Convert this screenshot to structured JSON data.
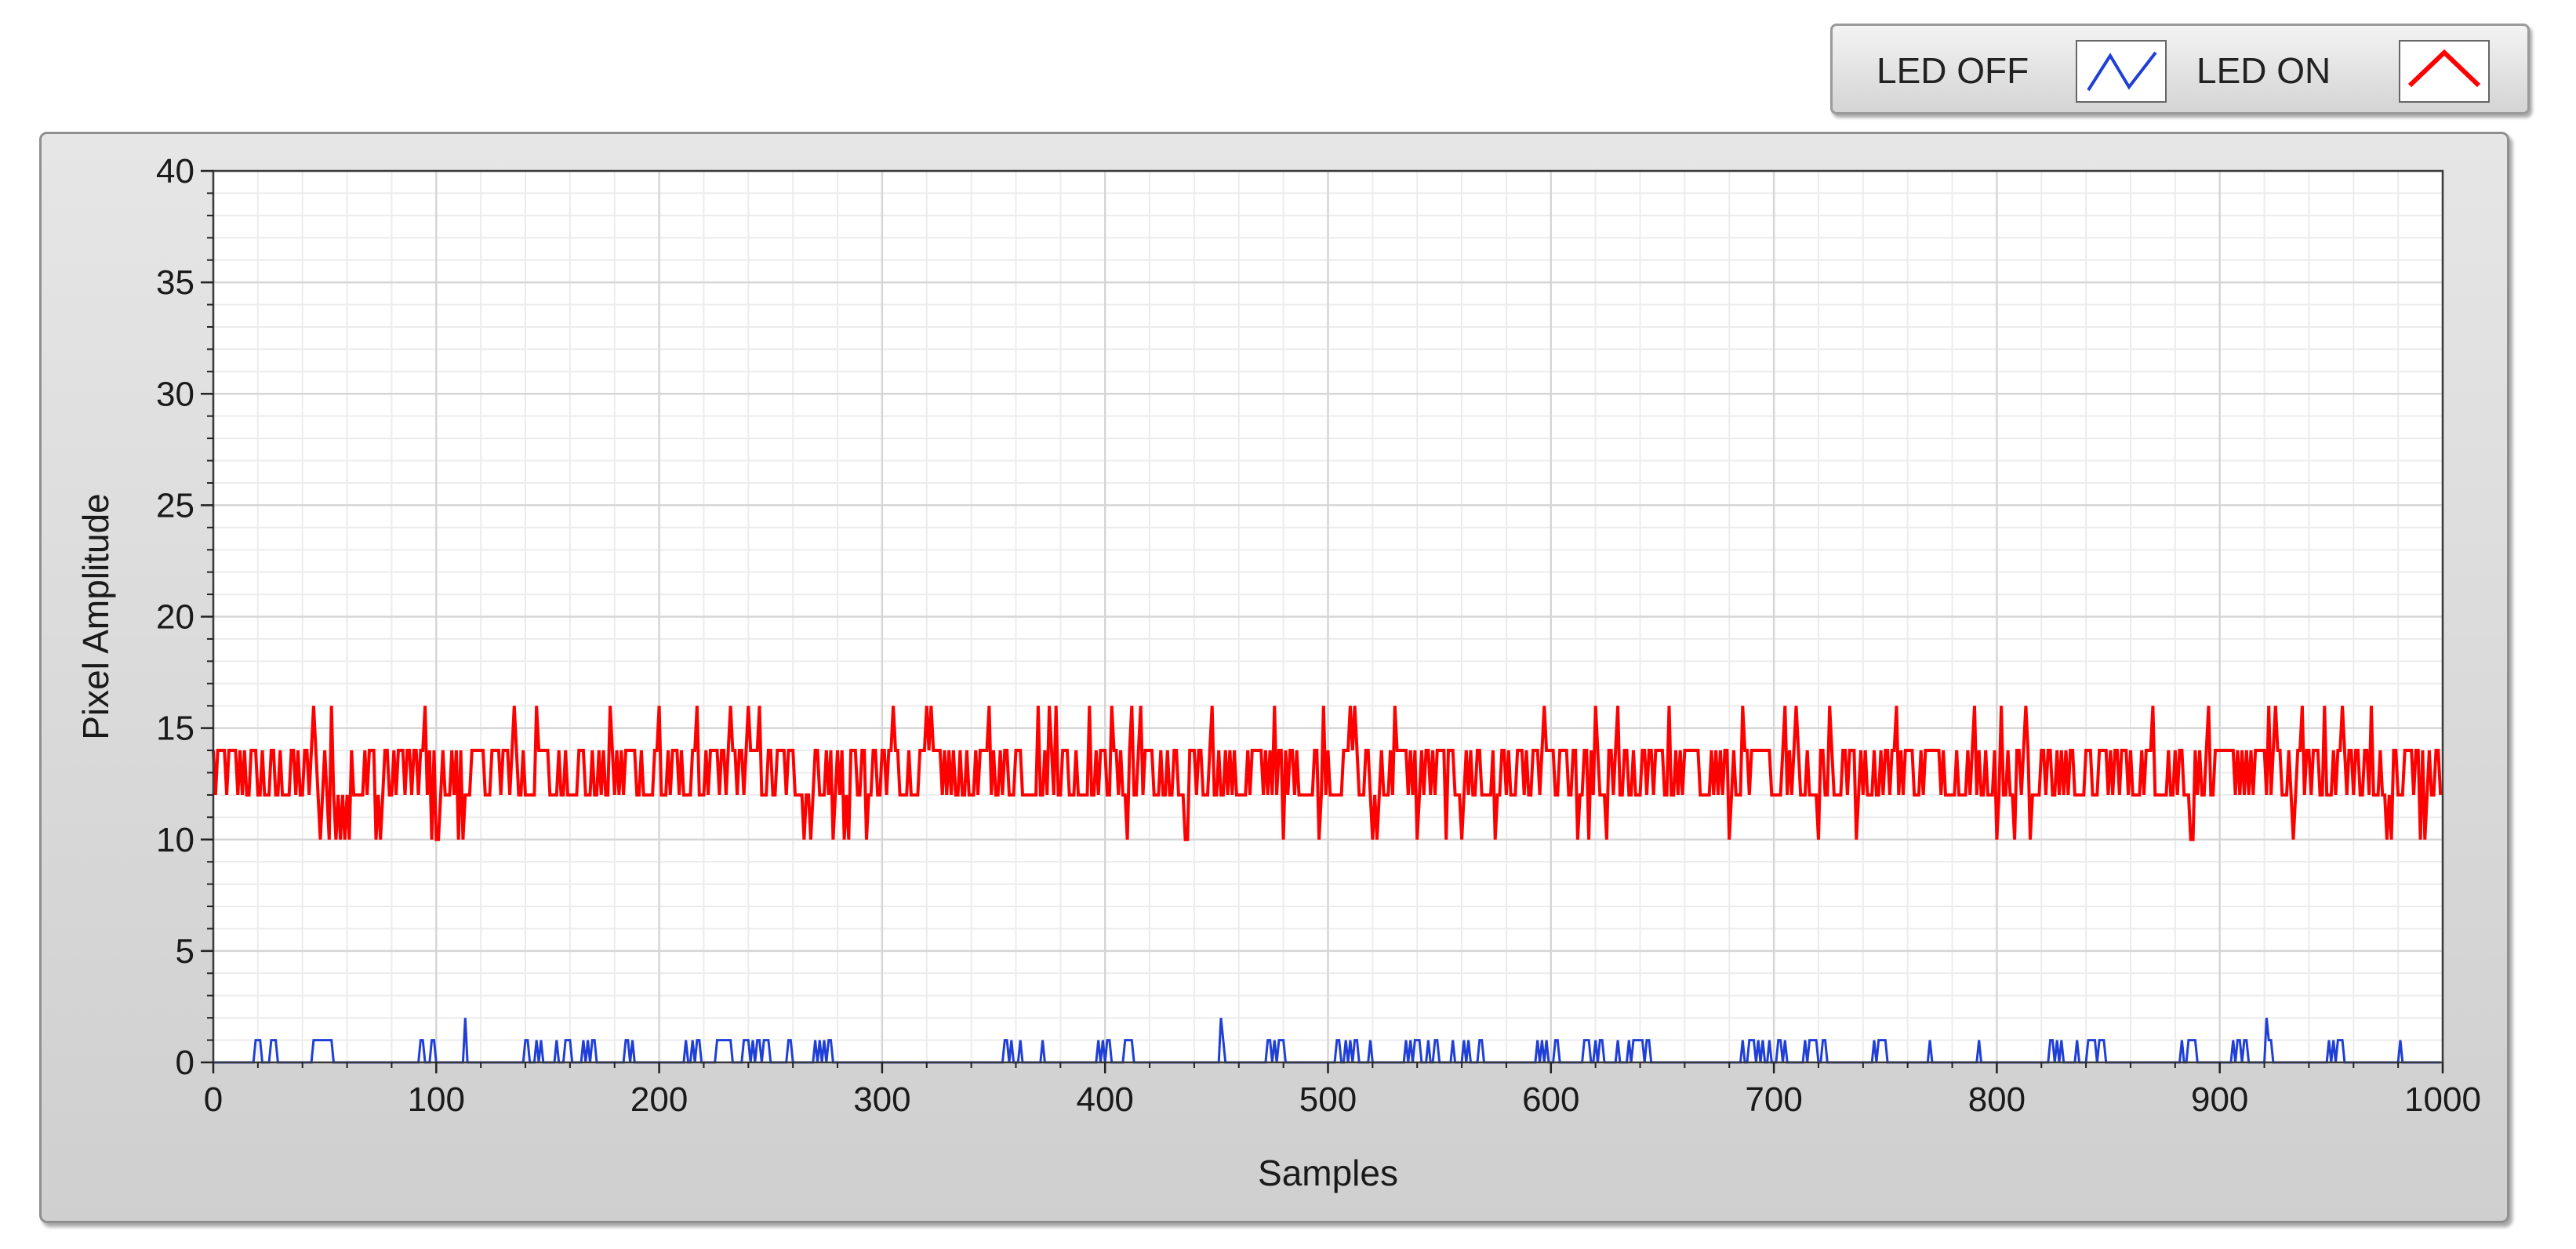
{
  "legend": {
    "items": [
      {
        "label": "LED OFF",
        "color": "#1f3fd6",
        "icon": "line-sample-icon"
      },
      {
        "label": "LED ON",
        "color": "#ff0000",
        "icon": "line-sample-icon"
      }
    ]
  },
  "chart_data": {
    "type": "line",
    "title": "",
    "xlabel": "Samples",
    "ylabel": "Pixel Amplitude",
    "xlim": [
      0,
      1000
    ],
    "ylim": [
      0,
      40
    ],
    "x_ticks": [
      "0",
      "100",
      "200",
      "300",
      "400",
      "500",
      "600",
      "700",
      "800",
      "900",
      "1000"
    ],
    "y_ticks": [
      "0",
      "5",
      "10",
      "15",
      "20",
      "25",
      "30",
      "35",
      "40"
    ],
    "grid": true,
    "minor_grid": true,
    "legend_position": "top-right, outside plot",
    "plot_background": "#ffffff",
    "series": [
      {
        "name": "LED ON",
        "color": "#ff0000",
        "baseline_levels": [
          12,
          14
        ],
        "dip_level": 10,
        "spike_level": 16,
        "sample_count": 1000,
        "spike_at": [
          45,
          53,
          95,
          135,
          145,
          178,
          200,
          217,
          232,
          240,
          245,
          305,
          320,
          322,
          348,
          370,
          378,
          375,
          393,
          403,
          412,
          416,
          448,
          476,
          498,
          510,
          512,
          530,
          597,
          620,
          630,
          653,
          686,
          705,
          710,
          725,
          755,
          790,
          802,
          813,
          870,
          895,
          922,
          925,
          937,
          947,
          955,
          968
        ],
        "dip_at": [
          48,
          52,
          55,
          57,
          59,
          61,
          73,
          75,
          98,
          100,
          101,
          110,
          112,
          265,
          268,
          278,
          283,
          285,
          293,
          410,
          412,
          436,
          437,
          480,
          496,
          520,
          522,
          540,
          553,
          560,
          575,
          612,
          617,
          625,
          630,
          680,
          720,
          725,
          737,
          800,
          808,
          815,
          887,
          888,
          933,
          975,
          977,
          990,
          992
        ]
      },
      {
        "name": "LED OFF",
        "color": "#1f3fd6",
        "baseline_level": 0,
        "common_peak": 1,
        "max_peak": 2,
        "sample_count": 1000,
        "peaks_at_2": [
          113,
          452,
          921
        ]
      }
    ]
  }
}
